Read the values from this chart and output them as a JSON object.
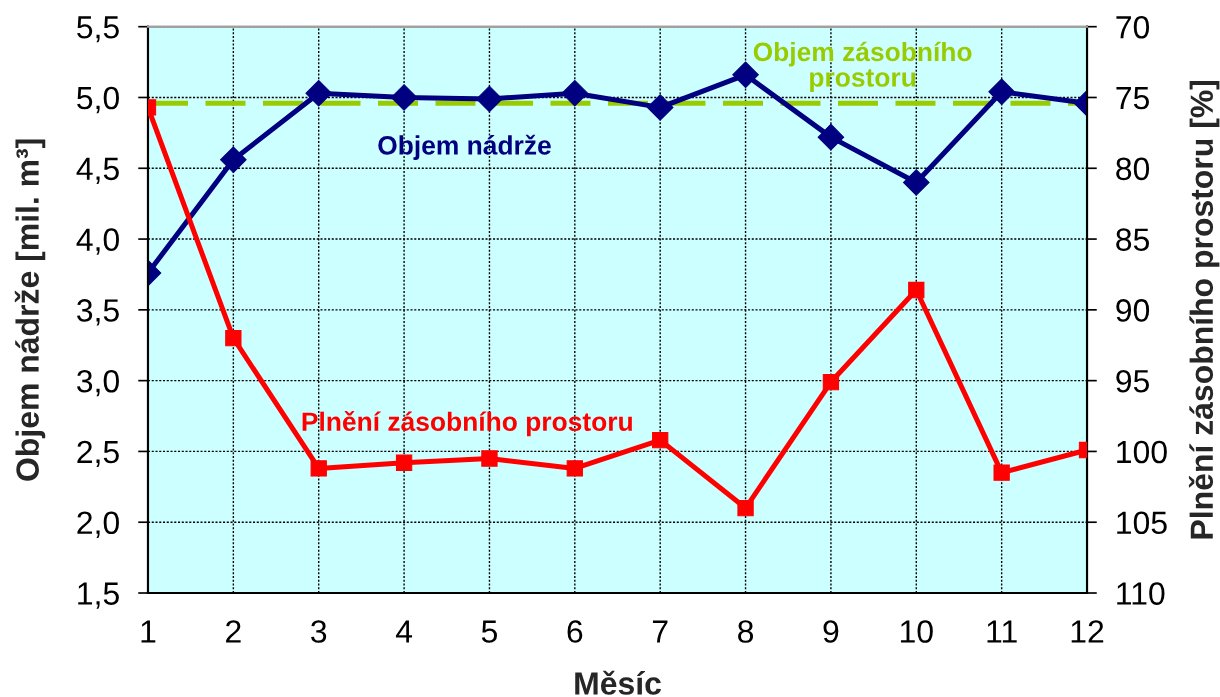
{
  "chart_data": {
    "type": "line",
    "xlabel": "Měsíc",
    "ylabel": "Objem nádrže [mil. m³]",
    "y2label": "Plnění zásobního prostoru [%]",
    "x": [
      1,
      2,
      3,
      4,
      5,
      6,
      7,
      8,
      9,
      10,
      11,
      12
    ],
    "series": [
      {
        "name": "Objem nádrže",
        "color": "#000080",
        "marker": "diamond",
        "values": [
          3.76,
          4.56,
          5.03,
          5.0,
          4.99,
          5.03,
          4.93,
          5.16,
          4.72,
          4.4,
          5.04,
          4.96
        ]
      },
      {
        "name": "Plnění zásobního prostoru",
        "color": "#ff0000",
        "marker": "square",
        "axis": "y2",
        "values": [
          75.7,
          92.0,
          101.2,
          100.8,
          100.5,
          101.2,
          99.2,
          104.0,
          95.1,
          88.6,
          101.5,
          99.9
        ]
      }
    ],
    "xlim": [
      1,
      12
    ],
    "xticks": [
      1,
      2,
      3,
      4,
      5,
      6,
      7,
      8,
      9,
      10,
      11,
      12
    ],
    "ylim": [
      1.5,
      5.5
    ],
    "yticks": [
      {
        "value": 1.5,
        "label": "1,5"
      },
      {
        "value": 2.0,
        "label": "2,0"
      },
      {
        "value": 2.5,
        "label": "2,5"
      },
      {
        "value": 3.0,
        "label": "3,0"
      },
      {
        "value": 3.5,
        "label": "3,5"
      },
      {
        "value": 4.0,
        "label": "4,0"
      },
      {
        "value": 4.5,
        "label": "4,5"
      },
      {
        "value": 5.0,
        "label": "5,0"
      },
      {
        "value": 5.5,
        "label": "5,5"
      }
    ],
    "y2lim": [
      110,
      70
    ],
    "y2ticks": [
      70,
      75,
      80,
      85,
      90,
      95,
      100,
      105,
      110
    ],
    "ref_lines": [
      {
        "axis": "y",
        "value": 4.96,
        "label": "Objem zásobního\nprostoru",
        "color": "#99cc00",
        "line_style": "dashed"
      }
    ],
    "grid": true,
    "line_style": "solid"
  }
}
